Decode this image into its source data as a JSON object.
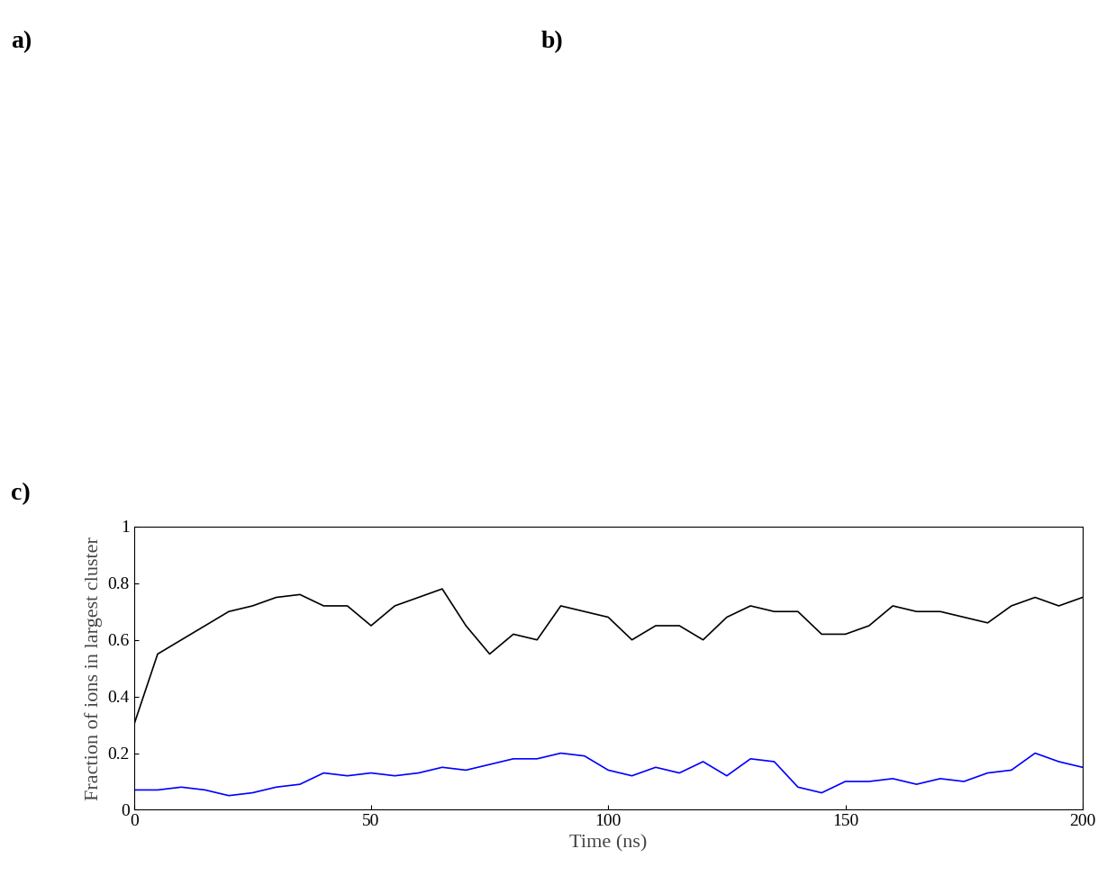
{
  "panel_labels": [
    "a)",
    "b)"
  ],
  "chart_data": {
    "type": "line",
    "panel_label": "c)",
    "x_label": "Time (ns)",
    "y_label": "Fraction of ions in largest cluster",
    "x": [
      0,
      5,
      10,
      15,
      20,
      25,
      30,
      35,
      40,
      45,
      50,
      55,
      60,
      65,
      70,
      75,
      80,
      85,
      90,
      95,
      100,
      105,
      110,
      115,
      120,
      125,
      130,
      135,
      140,
      145,
      150,
      155,
      160,
      165,
      170,
      175,
      180,
      185,
      190,
      195,
      200
    ],
    "series": [
      {
        "color": "#000000",
        "values": [
          0.3,
          0.55,
          0.6,
          0.65,
          0.7,
          0.72,
          0.75,
          0.76,
          0.72,
          0.72,
          0.65,
          0.72,
          0.75,
          0.78,
          0.65,
          0.55,
          0.62,
          0.6,
          0.72,
          0.7,
          0.68,
          0.6,
          0.65,
          0.65,
          0.6,
          0.68,
          0.72,
          0.7,
          0.7,
          0.62,
          0.62,
          0.65,
          0.72,
          0.7,
          0.7,
          0.68,
          0.66,
          0.72,
          0.75,
          0.72,
          0.75
        ]
      },
      {
        "color": "#0000ff",
        "values": [
          0.07,
          0.07,
          0.08,
          0.07,
          0.05,
          0.06,
          0.08,
          0.09,
          0.13,
          0.12,
          0.13,
          0.12,
          0.13,
          0.15,
          0.14,
          0.16,
          0.18,
          0.18,
          0.2,
          0.19,
          0.14,
          0.12,
          0.15,
          0.13,
          0.17,
          0.12,
          0.18,
          0.17,
          0.08,
          0.06,
          0.1,
          0.1,
          0.11,
          0.09,
          0.11,
          0.1,
          0.13,
          0.14,
          0.2,
          0.17,
          0.15
        ]
      }
    ],
    "xlim": [
      0,
      200
    ],
    "xticks": [
      0,
      50,
      100,
      150,
      200
    ],
    "ylim": [
      0,
      1
    ],
    "yticks": [
      0,
      0.2,
      0.4,
      0.6,
      0.8,
      1
    ],
    "grid": false
  }
}
